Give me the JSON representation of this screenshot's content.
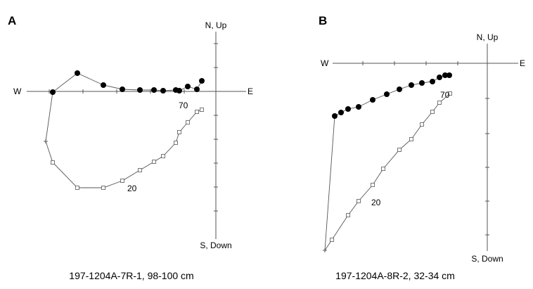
{
  "panels": [
    {
      "letter": "A",
      "axis_labels": {
        "north": "N, Up",
        "south": "S, Down",
        "west": "W",
        "east": "E"
      },
      "step_labels": [
        "70",
        "20"
      ],
      "caption": "197-1204A-7R-1, 98-100 cm",
      "horizontal_projection": [
        [
          -232,
          -1
        ],
        [
          -197,
          26
        ],
        [
          -160,
          9
        ],
        [
          -133,
          3
        ],
        [
          -108,
          2
        ],
        [
          -88,
          2
        ],
        [
          -75,
          1
        ],
        [
          -57,
          2
        ],
        [
          -52,
          1
        ],
        [
          -40,
          7
        ],
        [
          -27,
          3
        ],
        [
          -20,
          15
        ]
      ],
      "vertical_projection": [
        [
          -242,
          -71
        ],
        [
          -232,
          -101
        ],
        [
          -197,
          -137
        ],
        [
          -160,
          -137
        ],
        [
          -133,
          -127
        ],
        [
          -108,
          -112
        ],
        [
          -88,
          -100
        ],
        [
          -75,
          -92
        ],
        [
          -57,
          -73
        ],
        [
          -52,
          -58
        ],
        [
          -40,
          -44
        ],
        [
          -27,
          -29
        ],
        [
          -20,
          -26
        ]
      ]
    },
    {
      "letter": "B",
      "axis_labels": {
        "north": "N, Up",
        "south": "S, Down",
        "west": "W",
        "east": "E"
      },
      "step_labels": [
        "70",
        "20"
      ],
      "caption": "197-1204A-8R-2, 32-34 cm",
      "horizontal_projection": [
        [
          -217,
          -75
        ],
        [
          -208,
          -70
        ],
        [
          -198,
          -65
        ],
        [
          -183,
          -62
        ],
        [
          -163,
          -52
        ],
        [
          -143,
          -44
        ],
        [
          -125,
          -37
        ],
        [
          -108,
          -31
        ],
        [
          -93,
          -28
        ],
        [
          -78,
          -26
        ],
        [
          -68,
          -20
        ],
        [
          -60,
          -17
        ],
        [
          -54,
          -17
        ]
      ],
      "vertical_projection": [
        [
          -231,
          -266
        ],
        [
          -221,
          -251
        ],
        [
          -198,
          -216
        ],
        [
          -183,
          -196
        ],
        [
          -163,
          -173
        ],
        [
          -148,
          -150
        ],
        [
          -125,
          -123
        ],
        [
          -108,
          -108
        ],
        [
          -93,
          -87
        ],
        [
          -78,
          -69
        ],
        [
          -68,
          -56
        ],
        [
          -53,
          -43
        ]
      ]
    }
  ]
}
